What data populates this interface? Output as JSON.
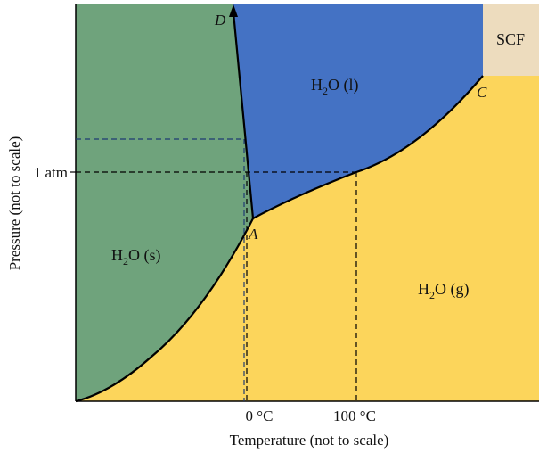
{
  "regions": {
    "solid": {
      "formula": "H",
      "sub": "2",
      "rest": "O (s)",
      "color": "#6fa37c"
    },
    "liquid": {
      "formula": "H",
      "sub": "2",
      "rest": "O (l)",
      "color": "#4472c4"
    },
    "gas": {
      "formula": "H",
      "sub": "2",
      "rest": "O (g)",
      "color": "#fcd55b"
    },
    "scf": {
      "label": "SCF",
      "color": "#eddcbe"
    }
  },
  "points": {
    "D": "D",
    "A": "A",
    "C": "C"
  },
  "axes": {
    "y_label": "Pressure (not to scale)",
    "x_label": "Temperature (not to scale)",
    "y_tick": "1 atm",
    "x_ticks": [
      "0 °C",
      "100 °C"
    ]
  }
}
